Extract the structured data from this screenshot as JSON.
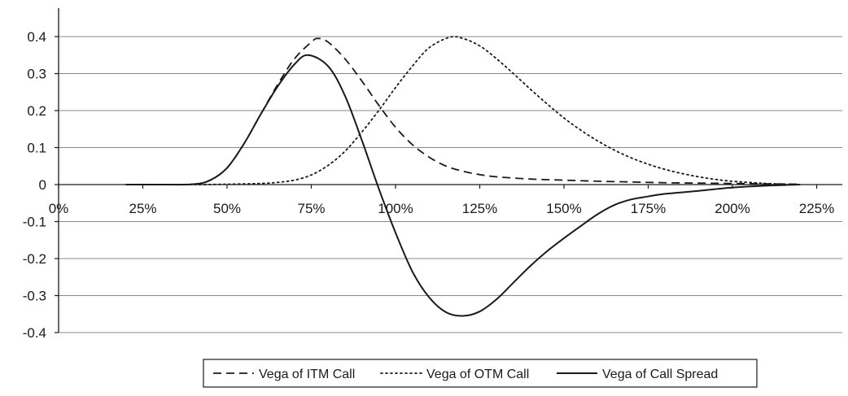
{
  "chart_data": {
    "type": "line",
    "title": "",
    "xlabel": "",
    "ylabel": "",
    "xlim": [
      0,
      2.3
    ],
    "ylim": [
      -0.4,
      0.4
    ],
    "x_tick_labels": [
      "0%",
      "25%",
      "50%",
      "75%",
      "100%",
      "125%",
      "150%",
      "175%",
      "200%",
      "225%"
    ],
    "x_ticks": [
      0,
      0.25,
      0.5,
      0.75,
      1.0,
      1.25,
      1.5,
      1.75,
      2.0,
      2.25
    ],
    "y_tick_labels": [
      "0.4",
      "0.3",
      "0.2",
      "0.1",
      "0",
      "-0.1",
      "-0.2",
      "-0.3",
      "-0.4"
    ],
    "y_ticks": [
      0.4,
      0.3,
      0.2,
      0.1,
      0,
      -0.1,
      -0.2,
      -0.3,
      -0.4
    ],
    "grid": true,
    "legend": "bottom",
    "series": [
      {
        "name": "Vega of ITM Call",
        "style": "dashed",
        "x": [
          0.2,
          0.3,
          0.4,
          0.45,
          0.5,
          0.55,
          0.6,
          0.65,
          0.7,
          0.75,
          0.77,
          0.8,
          0.85,
          0.9,
          0.95,
          1.0,
          1.05,
          1.1,
          1.15,
          1.2,
          1.25,
          1.3,
          1.4,
          1.5,
          1.6,
          1.7,
          1.8,
          1.9,
          2.0,
          2.1,
          2.2
        ],
        "values": [
          0,
          0,
          0.001,
          0.012,
          0.045,
          0.11,
          0.19,
          0.27,
          0.34,
          0.385,
          0.395,
          0.385,
          0.34,
          0.28,
          0.215,
          0.155,
          0.108,
          0.074,
          0.05,
          0.036,
          0.027,
          0.021,
          0.015,
          0.012,
          0.009,
          0.007,
          0.005,
          0.004,
          0.003,
          0.002,
          0.001
        ]
      },
      {
        "name": "Vega of OTM Call",
        "style": "dotted",
        "x": [
          0.2,
          0.4,
          0.5,
          0.6,
          0.65,
          0.7,
          0.75,
          0.8,
          0.85,
          0.9,
          0.95,
          1.0,
          1.05,
          1.1,
          1.16,
          1.2,
          1.25,
          1.3,
          1.35,
          1.4,
          1.45,
          1.5,
          1.55,
          1.6,
          1.65,
          1.7,
          1.75,
          1.8,
          1.85,
          1.9,
          1.95,
          2.0,
          2.1,
          2.2
        ],
        "values": [
          0,
          0,
          0.001,
          0.003,
          0.006,
          0.012,
          0.026,
          0.052,
          0.09,
          0.142,
          0.2,
          0.262,
          0.32,
          0.37,
          0.398,
          0.395,
          0.375,
          0.34,
          0.3,
          0.258,
          0.218,
          0.18,
          0.147,
          0.118,
          0.093,
          0.072,
          0.055,
          0.041,
          0.03,
          0.021,
          0.014,
          0.009,
          0.003,
          0
        ]
      },
      {
        "name": "Vega of Call Spread",
        "style": "solid",
        "x": [
          0.2,
          0.3,
          0.4,
          0.45,
          0.5,
          0.55,
          0.6,
          0.65,
          0.7,
          0.74,
          0.8,
          0.85,
          0.9,
          0.95,
          1.0,
          1.05,
          1.1,
          1.15,
          1.2,
          1.25,
          1.3,
          1.35,
          1.4,
          1.45,
          1.5,
          1.55,
          1.6,
          1.65,
          1.7,
          1.75,
          1.8,
          1.9,
          2.0,
          2.1,
          2.2
        ],
        "values": [
          0,
          0,
          0.001,
          0.012,
          0.045,
          0.11,
          0.19,
          0.265,
          0.325,
          0.35,
          0.32,
          0.24,
          0.12,
          -0.01,
          -0.13,
          -0.235,
          -0.305,
          -0.345,
          -0.355,
          -0.343,
          -0.31,
          -0.265,
          -0.22,
          -0.18,
          -0.145,
          -0.112,
          -0.08,
          -0.055,
          -0.04,
          -0.032,
          -0.025,
          -0.017,
          -0.008,
          -0.003,
          0
        ]
      }
    ]
  }
}
